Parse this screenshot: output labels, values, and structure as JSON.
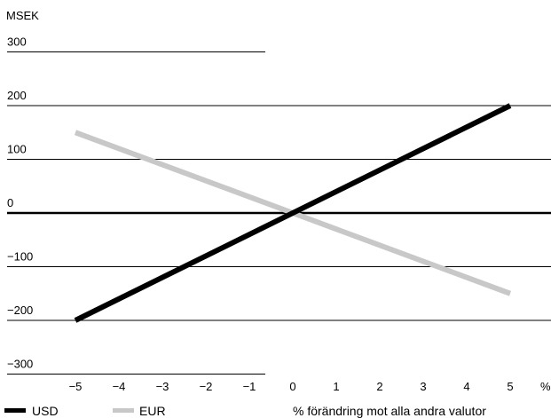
{
  "chart_data": {
    "type": "line",
    "ylabel": "MSEK",
    "xlabel": "% förändring mot alla andra valutor",
    "x_unit_label": "%",
    "xlim": [
      -5,
      5
    ],
    "ylim": [
      -300,
      300
    ],
    "x_ticks": [
      "−5",
      "−4",
      "−3",
      "−2",
      "−1",
      "0",
      "1",
      "2",
      "3",
      "4",
      "5"
    ],
    "y_ticks": [
      "300",
      "200",
      "100",
      "0",
      "−100",
      "−200",
      "−300"
    ],
    "grid": true,
    "legend_position": "bottom-left",
    "series": [
      {
        "name": "USD",
        "x": [
          -5,
          5
        ],
        "y": [
          -200,
          200
        ],
        "color": "#000000"
      },
      {
        "name": "EUR",
        "x": [
          -5,
          5
        ],
        "y": [
          150,
          -150
        ],
        "color": "#c8c8c8"
      }
    ]
  }
}
